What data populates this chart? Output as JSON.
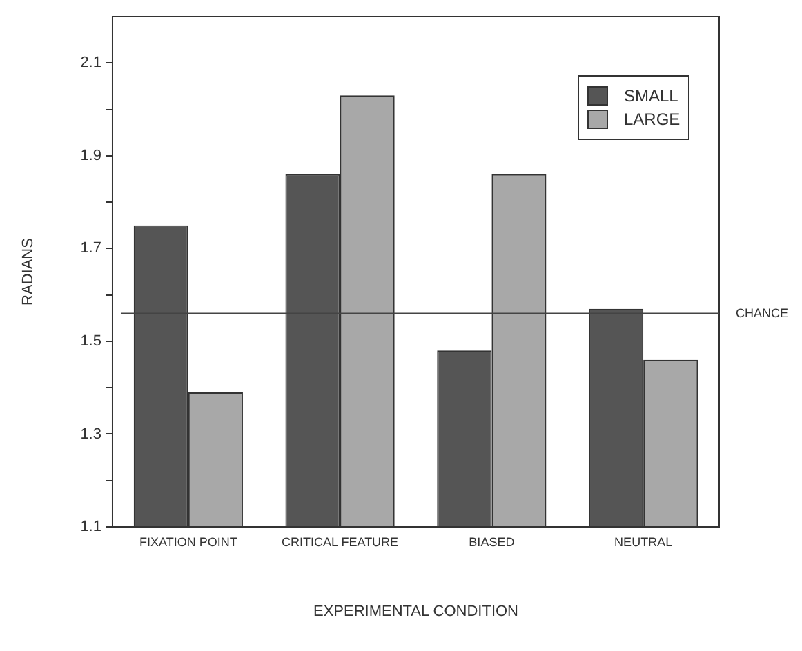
{
  "chart_data": {
    "type": "bar",
    "xlabel": "EXPERIMENTAL CONDITION",
    "ylabel": "RADIANS",
    "categories": [
      "FIXATION POINT",
      "CRITICAL FEATURE",
      "BIASED",
      "NEUTRAL"
    ],
    "series": [
      {
        "name": "SMALL",
        "color": "#555555",
        "values": [
          1.75,
          1.86,
          1.48,
          1.57
        ]
      },
      {
        "name": "LARGE",
        "color": "#a8a8a8",
        "values": [
          1.39,
          2.03,
          1.86,
          1.46
        ]
      }
    ],
    "ylim": [
      1.1,
      2.2
    ],
    "yticks": [
      1.1,
      {
        "value": 1.2,
        "label": null
      },
      1.3,
      {
        "value": 1.4,
        "label": null
      },
      1.5,
      {
        "value": 1.6,
        "label": null
      },
      1.7,
      {
        "value": 1.8,
        "label": null
      },
      1.9,
      {
        "value": 2.0,
        "label": null
      },
      2.1
    ],
    "ref_lines": [
      {
        "axis": "y",
        "value": 1.56,
        "label": "CHANCE",
        "color": "#444444"
      }
    ],
    "grid": false,
    "legend": "top right"
  }
}
